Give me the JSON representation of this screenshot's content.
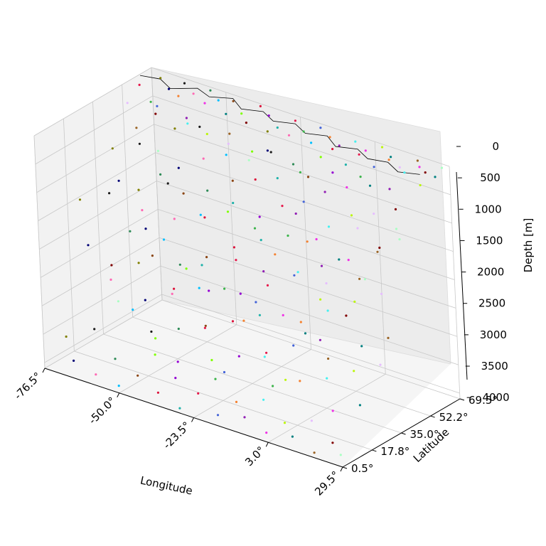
{
  "chart_data": {
    "type": "scatter",
    "projection": "3d",
    "title": "",
    "xlabel": "Longitude",
    "ylabel": "Latitude",
    "zlabel": "Depth [m]",
    "xlim": [
      -76.5,
      29.5
    ],
    "ylim": [
      0.5,
      69.5
    ],
    "zlim": [
      0,
      4100
    ],
    "z_inverted": true,
    "x_ticks": [
      -76.5,
      -50.0,
      -23.5,
      3.0,
      29.5
    ],
    "x_tick_labels": [
      "-76.5°",
      "-50.0°",
      "-23.5°",
      "3.0°",
      "29.5°"
    ],
    "y_ticks": [
      0.5,
      17.8,
      35.0,
      52.2,
      69.5
    ],
    "y_tick_labels": [
      "0.5°",
      "17.8°",
      "35.0°",
      "52.2°",
      "69.5°"
    ],
    "z_ticks": [
      0,
      500,
      1000,
      1500,
      2000,
      2500,
      3000,
      3500,
      4000
    ],
    "z_tick_labels": [
      "0",
      "500",
      "1000",
      "1500",
      "2000",
      "2500",
      "3000",
      "3500",
      "4000"
    ],
    "grid": true,
    "legend": "none",
    "marker_size": "small",
    "coastline": true,
    "point_colors": [
      "#e6194b",
      "#3cb44b",
      "#4363d8",
      "#f58231",
      "#911eb4",
      "#46f0f0",
      "#f032e6",
      "#bcf60c",
      "#008080",
      "#e6beff",
      "#9a6324",
      "#800000",
      "#aaffc3",
      "#808000",
      "#000075",
      "#1a1a1a",
      "#ff69b4",
      "#2e8b57",
      "#00bfff",
      "#8b4513",
      "#7fff00",
      "#dc143c",
      "#9400d3",
      "#20b2aa"
    ],
    "series": [
      {
        "points": [
          [
            -75.2,
            60.1,
            120
          ],
          [
            -70.3,
            58.4,
            310
          ],
          [
            -66.1,
            55.2,
            260
          ],
          [
            -62.7,
            62.3,
            150
          ],
          [
            -58.4,
            59.6,
            420
          ],
          [
            -55.1,
            54.8,
            380
          ],
          [
            -52.6,
            61.2,
            90
          ],
          [
            -49.8,
            57.3,
            520
          ],
          [
            -46.3,
            63.1,
            210
          ],
          [
            -43.2,
            58.8,
            610
          ],
          [
            -40.5,
            55.4,
            330
          ],
          [
            -37.6,
            60.7,
            180
          ],
          [
            -34.4,
            56.2,
            710
          ],
          [
            -31.2,
            62.5,
            260
          ],
          [
            -28.7,
            58.1,
            480
          ],
          [
            -25.3,
            54.6,
            390
          ],
          [
            -22.1,
            60.3,
            140
          ],
          [
            -19.4,
            57.7,
            560
          ],
          [
            -16.2,
            63.4,
            230
          ],
          [
            -13.1,
            55.9,
            650
          ],
          [
            -10.3,
            59.2,
            310
          ],
          [
            -7.6,
            61.8,
            170
          ],
          [
            -4.5,
            56.4,
            440
          ],
          [
            -1.2,
            58.9,
            290
          ],
          [
            1.7,
            62.2,
            120
          ],
          [
            4.8,
            57.5,
            380
          ],
          [
            7.9,
            60.6,
            210
          ],
          [
            11.2,
            64.1,
            90
          ],
          [
            14.6,
            58.3,
            450
          ],
          [
            18.1,
            61.7,
            160
          ],
          [
            21.4,
            65.2,
            70
          ],
          [
            24.8,
            59.8,
            240
          ],
          [
            27.9,
            63.6,
            110
          ],
          [
            -73.6,
            50.2,
            240
          ],
          [
            -69.1,
            47.6,
            560
          ],
          [
            -64.8,
            52.1,
            320
          ],
          [
            -60.2,
            45.3,
            780
          ],
          [
            -56.7,
            49.9,
            410
          ],
          [
            -52.3,
            44.1,
            930
          ],
          [
            -48.6,
            51.3,
            270
          ],
          [
            -44.9,
            46.8,
            690
          ],
          [
            -41.3,
            42.5,
            1120
          ],
          [
            -37.8,
            48.7,
            540
          ],
          [
            -33.5,
            44.9,
            860
          ],
          [
            -29.6,
            50.6,
            380
          ],
          [
            -26.1,
            46.2,
            740
          ],
          [
            -22.4,
            41.8,
            1260
          ],
          [
            -18.9,
            47.5,
            620
          ],
          [
            -15.2,
            43.6,
            980
          ],
          [
            -11.7,
            49.3,
            430
          ],
          [
            -8.3,
            45.1,
            820
          ],
          [
            -4.9,
            40.7,
            1390
          ],
          [
            -1.4,
            46.6,
            560
          ],
          [
            2.1,
            42.3,
            1040
          ],
          [
            5.6,
            48.1,
            390
          ],
          [
            9.2,
            44.4,
            760
          ],
          [
            12.7,
            50.2,
            280
          ],
          [
            16.3,
            45.9,
            640
          ],
          [
            19.8,
            41.5,
            1180
          ],
          [
            23.4,
            47.3,
            470
          ],
          [
            26.9,
            43.2,
            870
          ],
          [
            -72.4,
            38.6,
            820
          ],
          [
            -67.9,
            34.2,
            1240
          ],
          [
            -63.3,
            39.8,
            610
          ],
          [
            -58.9,
            32.5,
            1580
          ],
          [
            -54.6,
            37.1,
            960
          ],
          [
            -50.2,
            30.4,
            1920
          ],
          [
            -45.8,
            35.9,
            1130
          ],
          [
            -41.5,
            28.7,
            2260
          ],
          [
            -37.1,
            33.6,
            1370
          ],
          [
            -32.8,
            27.2,
            2480
          ],
          [
            -28.4,
            36.4,
            1020
          ],
          [
            -24.1,
            29.8,
            1840
          ],
          [
            -19.7,
            34.5,
            1290
          ],
          [
            -15.4,
            26.3,
            2380
          ],
          [
            -11.1,
            31.7,
            1560
          ],
          [
            -6.8,
            37.9,
            880
          ],
          [
            -2.4,
            30.6,
            1710
          ],
          [
            1.9,
            35.2,
            1140
          ],
          [
            6.3,
            28.9,
            2020
          ],
          [
            10.6,
            33.8,
            1330
          ],
          [
            14.9,
            38.5,
            790
          ],
          [
            19.2,
            31.4,
            1490
          ],
          [
            23.6,
            36.7,
            960
          ],
          [
            27.8,
            40.2,
            620
          ],
          [
            -74.8,
            22.4,
            1480
          ],
          [
            -70.2,
            18.6,
            2140
          ],
          [
            -65.7,
            24.9,
            1260
          ],
          [
            -61.1,
            16.3,
            2560
          ],
          [
            -56.8,
            21.7,
            1730
          ],
          [
            -52.4,
            14.2,
            2910
          ],
          [
            -47.9,
            19.8,
            1980
          ],
          [
            -43.6,
            12.5,
            3240
          ],
          [
            -39.2,
            17.4,
            2380
          ],
          [
            -34.8,
            10.8,
            3480
          ],
          [
            -30.5,
            20.3,
            1870
          ],
          [
            -26.2,
            13.6,
            2790
          ],
          [
            -21.9,
            18.9,
            2120
          ],
          [
            -17.5,
            9.7,
            3360
          ],
          [
            -13.2,
            15.4,
            2480
          ],
          [
            -8.9,
            21.2,
            1640
          ],
          [
            -4.6,
            12.8,
            2930
          ],
          [
            -0.3,
            17.6,
            2210
          ],
          [
            4.1,
            10.3,
            3150
          ],
          [
            8.4,
            16.1,
            2360
          ],
          [
            12.7,
            22.6,
            1520
          ],
          [
            17.1,
            14.7,
            2640
          ],
          [
            21.4,
            19.3,
            1890
          ],
          [
            25.8,
            24.1,
            1260
          ],
          [
            -73.1,
            8.2,
            3620
          ],
          [
            -68.6,
            4.7,
            3910
          ],
          [
            -64.2,
            10.4,
            3380
          ],
          [
            -59.8,
            3.1,
            3980
          ],
          [
            -55.4,
            7.6,
            3710
          ],
          [
            -51.1,
            2.2,
            4020
          ],
          [
            -46.7,
            6.3,
            3840
          ],
          [
            -42.3,
            9.8,
            3460
          ],
          [
            -37.9,
            3.6,
            3950
          ],
          [
            -33.6,
            7.1,
            3680
          ],
          [
            -29.2,
            1.8,
            4050
          ],
          [
            -24.9,
            5.9,
            3790
          ],
          [
            -20.5,
            9.2,
            3520
          ],
          [
            -16.1,
            2.7,
            3970
          ],
          [
            -11.8,
            6.8,
            3740
          ],
          [
            -7.4,
            4.1,
            3890
          ],
          [
            -3.1,
            8.6,
            3590
          ],
          [
            1.3,
            2.4,
            3990
          ],
          [
            5.7,
            6.2,
            3810
          ],
          [
            10.1,
            3.3,
            3930
          ],
          [
            14.4,
            7.9,
            3660
          ],
          [
            18.8,
            1.6,
            4040
          ],
          [
            23.2,
            5.4,
            3860
          ],
          [
            27.5,
            2.9,
            3960
          ],
          [
            -71.7,
            66.8,
            60
          ],
          [
            -67.4,
            64.5,
            140
          ],
          [
            -63.8,
            67.9,
            40
          ],
          [
            -59.3,
            65.6,
            110
          ],
          [
            -54.9,
            68.4,
            30
          ],
          [
            -50.7,
            66.1,
            95
          ],
          [
            -46.1,
            67.3,
            55
          ],
          [
            -41.8,
            64.9,
            160
          ],
          [
            -37.3,
            68.8,
            25
          ],
          [
            -33.1,
            66.7,
            85
          ],
          [
            -28.6,
            64.2,
            180
          ],
          [
            -24.2,
            67.6,
            45
          ],
          [
            -19.9,
            65.3,
            125
          ],
          [
            -15.5,
            68.1,
            35
          ],
          [
            -11.2,
            66.4,
            100
          ],
          [
            -6.9,
            64.7,
            150
          ],
          [
            -2.6,
            67.2,
            50
          ],
          [
            1.8,
            65.9,
            115
          ],
          [
            6.1,
            68.6,
            30
          ],
          [
            10.5,
            66.3,
            90
          ],
          [
            14.8,
            64.4,
            170
          ],
          [
            19.2,
            67.8,
            40
          ],
          [
            23.5,
            65.1,
            130
          ],
          [
            27.6,
            68.2,
            35
          ],
          [
            -65.3,
            41.2,
            1480
          ],
          [
            -60.6,
            36.8,
            2010
          ],
          [
            -56.2,
            43.7,
            1260
          ],
          [
            -51.8,
            39.5,
            1740
          ],
          [
            -47.4,
            34.6,
            2390
          ],
          [
            -43.1,
            40.9,
            1550
          ],
          [
            -38.7,
            36.2,
            2140
          ],
          [
            -34.3,
            42.6,
            1380
          ],
          [
            -29.9,
            38.3,
            1860
          ],
          [
            -25.6,
            33.9,
            2530
          ],
          [
            -21.2,
            40.1,
            1620
          ],
          [
            -16.8,
            35.7,
            2270
          ],
          [
            -12.5,
            41.8,
            1430
          ],
          [
            -8.1,
            37.4,
            1980
          ],
          [
            -3.8,
            33.2,
            2660
          ],
          [
            0.6,
            39.6,
            1710
          ],
          [
            4.9,
            35.1,
            2350
          ],
          [
            9.3,
            41.3,
            1490
          ],
          [
            13.6,
            36.9,
            2080
          ],
          [
            18.0,
            32.8,
            2720
          ],
          [
            22.3,
            38.7,
            1830
          ],
          [
            26.7,
            34.4,
            2460
          ],
          [
            -68.2,
            28.3,
            2630
          ],
          [
            -63.7,
            24.1,
            3120
          ],
          [
            -59.3,
            29.8,
            2470
          ],
          [
            -54.9,
            25.6,
            2980
          ],
          [
            -50.5,
            21.3,
            3390
          ],
          [
            -46.2,
            27.4,
            2760
          ],
          [
            -41.8,
            23.2,
            3230
          ],
          [
            -37.4,
            29.1,
            2540
          ],
          [
            -33.0,
            24.8,
            3060
          ],
          [
            -28.7,
            20.6,
            3520
          ],
          [
            -24.3,
            26.7,
            2870
          ],
          [
            -19.9,
            22.4,
            3340
          ],
          [
            -15.6,
            28.5,
            2650
          ],
          [
            -11.2,
            24.3,
            3170
          ],
          [
            -6.8,
            20.1,
            3610
          ],
          [
            -2.5,
            26.2,
            2930
          ],
          [
            1.9,
            22.0,
            3410
          ],
          [
            6.2,
            27.9,
            2720
          ],
          [
            10.6,
            23.7,
            3250
          ],
          [
            14.9,
            19.5,
            3680
          ],
          [
            19.3,
            25.6,
            3010
          ],
          [
            23.6,
            21.4,
            3470
          ],
          [
            27.9,
            27.3,
            2790
          ]
        ]
      }
    ]
  }
}
